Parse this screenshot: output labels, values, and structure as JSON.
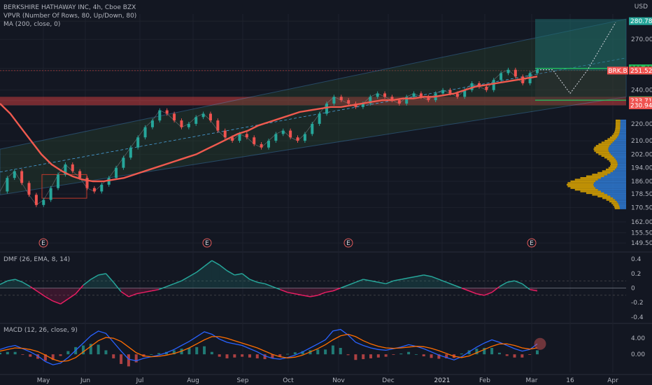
{
  "legend": {
    "title": "BERKSHIRE HATHAWAY INC, 4h, Cboe BZX",
    "vpvr": "VPVR (Number Of Rows, 80, Up/Down, 80)",
    "ma": "MA (200, close, 0)",
    "dmf": "DMF (26, EMA, 8, 14)",
    "macd": "MACD (12, 26, close, 9)"
  },
  "currency": "USD",
  "colors": {
    "background": "#131722",
    "up_candle": "#26a69a",
    "down_candle": "#ef5350",
    "ma": "#f05a4f",
    "channel": "#4aa3df",
    "vpvr_up": "#2f7bd6",
    "vpvr_down": "#e0a800",
    "green_level": "#22c55e",
    "red_level": "#ef4444"
  },
  "chart_data": [
    {
      "type": "line",
      "title": "BERKSHIRE HATHAWAY INC, 4h, Cboe BZX",
      "ylim": [
        145,
        285
      ],
      "y_ticks": [
        "280.78",
        "270.00",
        "252.85",
        "251.53",
        "251.52",
        "240.00",
        "233.99",
        "233.71",
        "230.94",
        "220.00",
        "210.00",
        "202.00",
        "194.00",
        "186.00",
        "178.50",
        "170.50",
        "162.00",
        "155.50",
        "149.50"
      ],
      "x_ticks": [
        "May",
        "Jun",
        "Jul",
        "Aug",
        "Sep",
        "Oct",
        "Nov",
        "Dec",
        "2021",
        "Feb",
        "Mar",
        "16",
        "Apr"
      ],
      "price_labels": [
        {
          "label": "280.78",
          "value": 280.78,
          "color": "#26a69a"
        },
        {
          "label": "252.85",
          "value": 252.85,
          "color": "#22c55e"
        },
        {
          "label": "251.53",
          "value": 251.53,
          "color": "#22c55e"
        },
        {
          "label": "BRK.B",
          "value": 251.52,
          "color": "#ef5350"
        },
        {
          "label": "251.52",
          "value": 251.52,
          "color": "#ef5350"
        },
        {
          "label": "233.99",
          "value": 233.99,
          "color": "#22c55e"
        },
        {
          "label": "233.71",
          "value": 233.71,
          "color": "#ef5350"
        },
        {
          "label": "230.94",
          "value": 230.94,
          "color": "#ef5350"
        }
      ],
      "events": [
        "E",
        "E",
        "E",
        "E"
      ],
      "series": [
        {
          "values": [
            180,
            188,
            192,
            185,
            178,
            172,
            175,
            182,
            190,
            196,
            192,
            188,
            182,
            180,
            184,
            188,
            194,
            200,
            206,
            212,
            218,
            222,
            228,
            226,
            222,
            218,
            220,
            224,
            226,
            222,
            216,
            212,
            210,
            214,
            212,
            208,
            206,
            210,
            214,
            216,
            212,
            210,
            214,
            220,
            226,
            232,
            236,
            234,
            232,
            230,
            232,
            236,
            238,
            236,
            234,
            232,
            236,
            238,
            236,
            234,
            238,
            240,
            238,
            236,
            240,
            244,
            242,
            240,
            246,
            250,
            252,
            248,
            244,
            250,
            252
          ]
        },
        {
          "values": [
            232,
            226,
            218,
            210,
            202,
            196,
            192,
            189,
            187,
            186,
            186,
            187,
            188,
            190,
            192,
            194,
            196,
            198,
            200,
            202,
            205,
            208,
            211,
            214,
            216,
            219,
            221,
            223,
            225,
            227,
            228,
            229,
            230,
            230,
            231,
            232,
            233,
            234,
            234,
            235,
            235,
            236,
            236,
            237,
            238,
            240,
            242,
            243,
            244,
            245,
            246,
            247,
            248
          ]
        }
      ]
    },
    {
      "type": "area",
      "title": "DMF (26, EMA, 8, 14)",
      "y_ticks": [
        "0.4",
        "0.2",
        "0",
        "-0.2",
        "-0.4"
      ],
      "ylim": [
        -0.45,
        0.45
      ],
      "values": [
        0.05,
        0.1,
        0.12,
        0.08,
        0.02,
        -0.05,
        -0.12,
        -0.18,
        -0.22,
        -0.15,
        -0.08,
        0.04,
        0.12,
        0.18,
        0.2,
        0.08,
        -0.05,
        -0.12,
        -0.08,
        -0.06,
        -0.04,
        -0.02,
        0.02,
        0.06,
        0.1,
        0.16,
        0.22,
        0.3,
        0.38,
        0.32,
        0.24,
        0.18,
        0.2,
        0.12,
        0.08,
        0.06,
        0.02,
        -0.02,
        -0.06,
        -0.08,
        -0.1,
        -0.12,
        -0.1,
        -0.06,
        -0.04,
        0.0,
        0.04,
        0.08,
        0.12,
        0.1,
        0.08,
        0.06,
        0.1,
        0.12,
        0.14,
        0.16,
        0.18,
        0.16,
        0.12,
        0.08,
        0.04,
        0.0,
        -0.04,
        -0.08,
        -0.1,
        -0.06,
        0.02,
        0.08,
        0.1,
        0.06,
        -0.02,
        -0.04
      ]
    },
    {
      "type": "line",
      "title": "MACD (12, 26, close, 9)",
      "y_ticks": [
        "4.00",
        "0.00"
      ],
      "ylim": [
        -4.5,
        7
      ],
      "series": [
        {
          "values": [
            1.2,
            1.8,
            2.2,
            1.4,
            0.6,
            -0.4,
            -1.8,
            -2.6,
            -2.2,
            -0.8,
            1.0,
            2.8,
            4.6,
            5.8,
            5.2,
            3.0,
            0.8,
            -1.2,
            -1.6,
            -1.0,
            -0.6,
            -0.2,
            0.4,
            1.2,
            2.2,
            3.2,
            4.4,
            5.6,
            5.0,
            3.8,
            3.0,
            2.6,
            2.2,
            1.4,
            0.6,
            -0.4,
            -1.0,
            -1.2,
            -0.8,
            -0.2,
            0.6,
            1.6,
            2.6,
            3.6,
            5.8,
            6.2,
            4.8,
            3.0,
            2.2,
            1.6,
            1.2,
            1.0,
            1.4,
            1.8,
            2.4,
            2.0,
            1.4,
            0.6,
            -0.2,
            -0.8,
            -1.4,
            -0.6,
            0.6,
            1.8,
            2.8,
            3.6,
            3.0,
            2.2,
            1.4,
            0.8,
            1.2,
            2.6
          ]
        },
        {
          "values": [
            0.8,
            1.2,
            1.6,
            1.5,
            1.2,
            0.7,
            -0.2,
            -1.2,
            -1.8,
            -1.6,
            -0.8,
            0.6,
            2.0,
            3.4,
            4.2,
            4.0,
            3.2,
            1.8,
            0.4,
            -0.4,
            -0.6,
            -0.5,
            -0.2,
            0.2,
            0.8,
            1.6,
            2.6,
            3.6,
            4.4,
            4.4,
            4.0,
            3.4,
            2.8,
            2.2,
            1.6,
            0.8,
            0.0,
            -0.6,
            -0.9,
            -0.7,
            -0.2,
            0.6,
            1.4,
            2.4,
            3.6,
            4.6,
            5.0,
            4.4,
            3.4,
            2.6,
            2.0,
            1.6,
            1.5,
            1.6,
            1.8,
            2.0,
            1.9,
            1.5,
            0.9,
            0.2,
            -0.5,
            -0.8,
            -0.4,
            0.4,
            1.2,
            2.0,
            2.6,
            2.6,
            2.2,
            1.6,
            1.3,
            1.6
          ]
        }
      ]
    }
  ]
}
